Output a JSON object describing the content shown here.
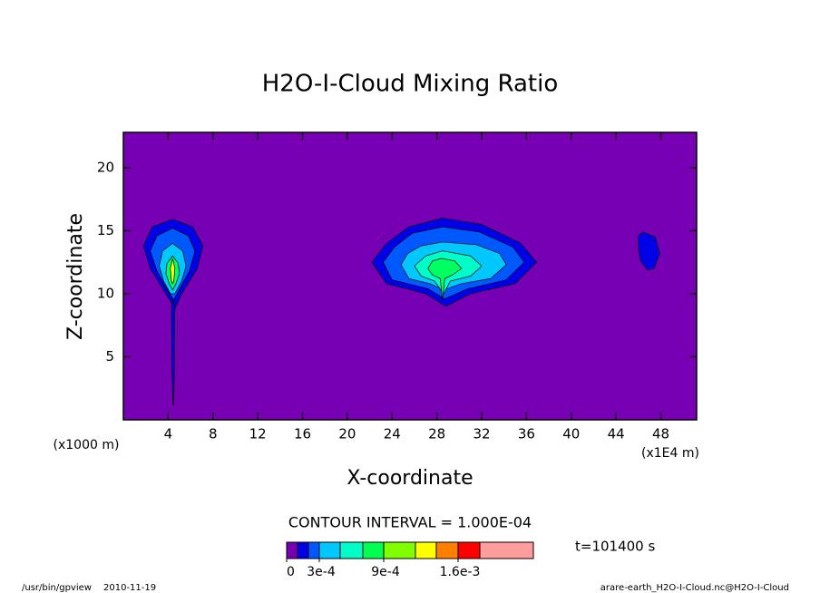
{
  "chart_data": {
    "type": "contour",
    "title": "H2O-I-Cloud Mixing Ratio",
    "xlabel": "X-coordinate",
    "ylabel": "Z-coordinate",
    "xunit": "(x1E4 m)",
    "yunit": "(x1000 m)",
    "xlim": [
      0,
      51.2
    ],
    "ylim": [
      0,
      22.8
    ],
    "xticks": [
      4,
      8,
      12,
      16,
      20,
      24,
      28,
      32,
      36,
      40,
      44,
      48
    ],
    "yticks": [
      5,
      10,
      15,
      20
    ],
    "background": "#7800b4",
    "regions": [
      {
        "color": "#0000e8",
        "x": [
          4.4,
          6.2,
          7.1,
          6.6,
          5.2,
          4.6,
          3.8,
          2.4,
          1.8,
          2.6
        ],
        "y": [
          15.9,
          15.3,
          13.8,
          12,
          10,
          8.8,
          10,
          12,
          13.8,
          15.3
        ]
      },
      {
        "color": "#0000e8",
        "x": [
          4.4,
          4.6,
          4.55,
          4.5,
          4.45,
          4.35,
          4.3
        ],
        "y": [
          9.5,
          9.0,
          4.0,
          1.2,
          1.2,
          4.0,
          9.0
        ]
      },
      {
        "color": "#0058ff",
        "x": [
          4.4,
          5.8,
          6.4,
          5.9,
          4.9,
          4.5,
          4.0,
          3.0,
          2.4,
          3.0
        ],
        "y": [
          15.2,
          14.6,
          13.4,
          11.8,
          10.2,
          9.5,
          10.2,
          11.8,
          13.4,
          14.6
        ]
      },
      {
        "color": "#00c8ff",
        "x": [
          4.4,
          5.3,
          5.6,
          5.2,
          4.6,
          4.2,
          3.6,
          3.2,
          3.5
        ],
        "y": [
          14.0,
          13.4,
          12.2,
          11.0,
          10.0,
          10.0,
          11.0,
          12.2,
          13.4
        ]
      },
      {
        "color": "#00ff60",
        "x": [
          4.4,
          4.9,
          5.0,
          4.7,
          4.4,
          4.1,
          3.8,
          3.9
        ],
        "y": [
          13.0,
          12.4,
          11.6,
          10.8,
          10.3,
          10.8,
          11.6,
          12.4
        ]
      },
      {
        "color": "#ffff00",
        "x": [
          4.4,
          4.6,
          4.5,
          4.4,
          4.3,
          4.2
        ],
        "y": [
          12.8,
          12.0,
          11.0,
          10.8,
          11.0,
          12.0
        ]
      },
      {
        "color": "#0000e8",
        "x": [
          28.5,
          32.0,
          35.5,
          36.9,
          35.0,
          31.0,
          28.8,
          27.0,
          23.5,
          22.2,
          23.5,
          25.5
        ],
        "y": [
          16.0,
          15.5,
          14.0,
          12.5,
          10.8,
          10.0,
          9.0,
          10.0,
          10.8,
          12.5,
          14.0,
          15.3
        ]
      },
      {
        "color": "#0058ff",
        "x": [
          28.5,
          31.8,
          34.8,
          35.8,
          34.2,
          30.8,
          28.7,
          27.2,
          24.0,
          23.2,
          24.2,
          25.8
        ],
        "y": [
          15.3,
          14.9,
          13.7,
          12.5,
          11.1,
          10.4,
          9.6,
          10.4,
          11.1,
          12.5,
          13.7,
          14.8
        ]
      },
      {
        "color": "#00c8ff",
        "x": [
          28.5,
          31.5,
          33.6,
          34.2,
          32.8,
          30.2,
          28.6,
          27.4,
          25.5,
          24.8,
          25.4,
          26.6
        ],
        "y": [
          14.1,
          13.9,
          13.2,
          12.3,
          11.2,
          10.8,
          10.3,
          10.8,
          11.2,
          12.3,
          13.2,
          13.8
        ]
      },
      {
        "color": "#00ffc8",
        "x": [
          28.5,
          31.0,
          32.0,
          31.0,
          29.2,
          28.6,
          27.8,
          26.6,
          26.0,
          27.0
        ],
        "y": [
          13.4,
          13.0,
          12.2,
          11.4,
          11.0,
          10.0,
          11.0,
          11.4,
          12.2,
          13.0
        ]
      },
      {
        "color": "#00ff60",
        "x": [
          28.4,
          29.6,
          30.2,
          29.4,
          28.7,
          28.5,
          28.3,
          27.6,
          27.2,
          27.6
        ],
        "y": [
          12.8,
          12.6,
          12.0,
          11.5,
          11.2,
          9.5,
          11.2,
          11.5,
          12.0,
          12.6
        ]
      },
      {
        "color": "#0000e8",
        "x": [
          46.4,
          47.5,
          47.9,
          47.4,
          46.8,
          46.2,
          46.0,
          46.0
        ],
        "y": [
          14.9,
          14.5,
          13.2,
          12.0,
          11.9,
          12.6,
          13.6,
          14.6
        ]
      }
    ],
    "contour_interval": "CONTOUR INTERVAL = 1.000E-04",
    "time": "t=101400 s",
    "colorbar": {
      "colors": [
        "#7800b4",
        "#0000e8",
        "#0058ff",
        "#00c8ff",
        "#00ffc8",
        "#00ff50",
        "#80ff00",
        "#ffff00",
        "#ff8000",
        "#ff0000",
        "#ff9c9c"
      ],
      "ticks": [
        {
          "value": 0,
          "label": "0"
        },
        {
          "value": 0.0003,
          "label": "3e-4"
        },
        {
          "value": 0.0009,
          "label": "9e-4"
        },
        {
          "value": 0.0016,
          "label": "1.6e-3"
        }
      ]
    },
    "footer_program": "/usr/bin/gpview",
    "footer_date": "2010-11-19",
    "footer_file": "arare-earth_H2O-I-Cloud.nc@H2O-I-Cloud"
  }
}
